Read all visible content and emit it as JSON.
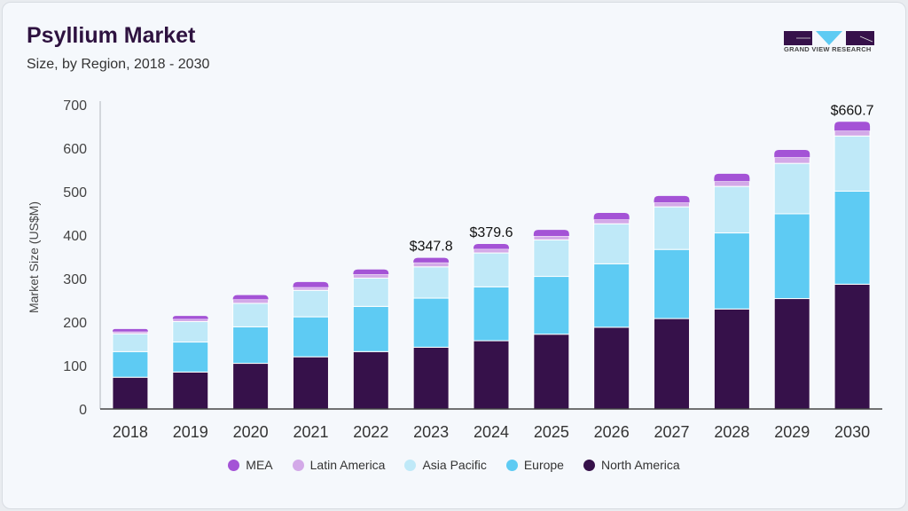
{
  "header": {
    "title": "Psyllium Market",
    "subtitle": "Size, by Region, 2018 - 2030",
    "logo_text": "GRAND VIEW RESEARCH"
  },
  "chart_data": {
    "type": "bar",
    "stacked": true,
    "title": "Psyllium Market",
    "subtitle": "Size, by Region, 2018 - 2030",
    "xlabel": "",
    "ylabel": "Market Size (US$M)",
    "ylim": [
      0,
      700
    ],
    "yticks": [
      0,
      100,
      200,
      300,
      400,
      500,
      600,
      700
    ],
    "grid": false,
    "legend_position": "bottom",
    "categories": [
      "2018",
      "2019",
      "2020",
      "2021",
      "2022",
      "2023",
      "2024",
      "2025",
      "2026",
      "2027",
      "2028",
      "2029",
      "2030"
    ],
    "series": [
      {
        "name": "North America",
        "color": "#36114a",
        "values": [
          73,
          85,
          105,
          120,
          132,
          142,
          157,
          172,
          188,
          208,
          230,
          254,
          287
        ]
      },
      {
        "name": "Europe",
        "color": "#5ecbf3",
        "values": [
          59,
          69,
          84,
          92,
          104,
          113,
          124,
          133,
          146,
          159,
          175,
          195,
          214
        ]
      },
      {
        "name": "Asia Pacific",
        "color": "#bfe9f8",
        "values": [
          41,
          47,
          54,
          61,
          65,
          72,
          78,
          84,
          92,
          98,
          107,
          116,
          127
        ]
      },
      {
        "name": "Latin America",
        "color": "#d3a9e8",
        "values": [
          5,
          6,
          9,
          7,
          9,
          10,
          9,
          9,
          10,
          10,
          12,
          14,
          12
        ]
      },
      {
        "name": "MEA",
        "color": "#a453d6",
        "values": [
          6,
          7,
          10,
          12,
          11,
          10.8,
          11.6,
          14,
          15,
          15,
          17,
          17,
          20.7
        ]
      }
    ],
    "annotations": [
      {
        "category": "2023",
        "label": "$347.8"
      },
      {
        "category": "2024",
        "label": "$379.6"
      },
      {
        "category": "2030",
        "label": "$660.7"
      }
    ],
    "legend_order": [
      "MEA",
      "Latin America",
      "Asia Pacific",
      "Europe",
      "North America"
    ]
  }
}
